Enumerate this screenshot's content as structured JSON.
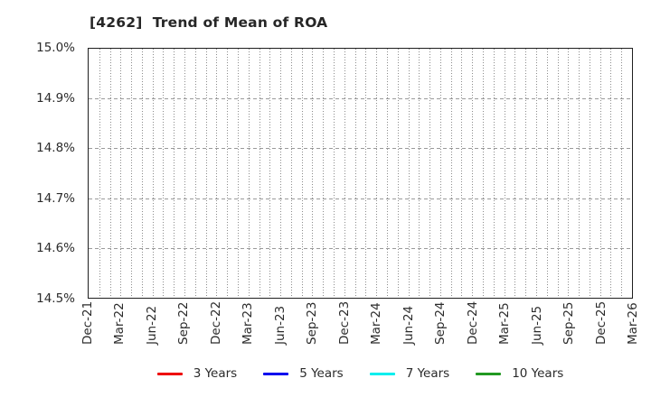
{
  "title": "[4262]  Trend of Mean of ROA",
  "chart_data": {
    "type": "line",
    "title": "[4262]  Trend of Mean of ROA",
    "xlabel": "",
    "ylabel": "",
    "ylim": [
      14.5,
      15.0
    ],
    "y_tick_step": 0.1,
    "y_tick_labels": [
      "15.0%",
      "14.9%",
      "14.8%",
      "14.7%",
      "14.6%",
      "14.5%"
    ],
    "x_tick_labels": [
      "Dec-21",
      "Mar-22",
      "Jun-22",
      "Sep-22",
      "Dec-22",
      "Mar-23",
      "Jun-23",
      "Sep-23",
      "Dec-23",
      "Mar-24",
      "Jun-24",
      "Sep-24",
      "Dec-24",
      "Mar-25",
      "Jun-25",
      "Sep-25",
      "Dec-25",
      "Mar-26"
    ],
    "x_minor_divisions_per_major": 3,
    "grid": true,
    "legend_position": "bottom-center",
    "series": [
      {
        "name": "3 Years",
        "color": "#ee0000",
        "values": []
      },
      {
        "name": "5 Years",
        "color": "#0000ee",
        "values": []
      },
      {
        "name": "7 Years",
        "color": "#00eeee",
        "values": []
      },
      {
        "name": "10 Years",
        "color": "#229922",
        "values": []
      }
    ],
    "note": "plot area is empty - no data points are drawn within the visible axis range"
  },
  "colors": {
    "background": "#ffffff",
    "axis_border": "#1f1f1f",
    "grid_vertical": "#8c8c8c",
    "grid_horizontal": "#9a9a9a",
    "title_text": "#262626",
    "tick_text": "#2b2b2b"
  }
}
